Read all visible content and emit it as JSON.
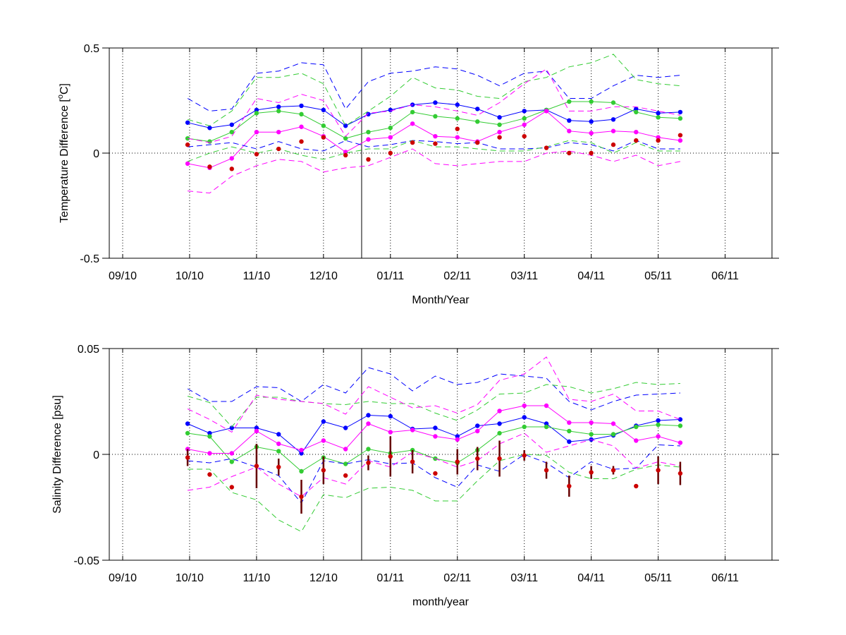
{
  "colors": {
    "blue": "#0000ff",
    "green": "#33cc33",
    "magenta": "#ff00ff",
    "red": "#cc0000",
    "errbar": "#660000",
    "axis": "#000000"
  },
  "chart_data": [
    {
      "type": "line",
      "ylabel_main": "Temperature Difference [",
      "ylabel_sup": "o",
      "ylabel_end": "C]",
      "xlabel": "Month/Year",
      "ylim": [
        -0.5,
        0.5
      ],
      "yticks": [
        -0.5,
        0,
        0.5
      ],
      "ytick_labels": [
        "-0.5",
        "0",
        "0.5"
      ],
      "xlim": [
        -0.2,
        9.7
      ],
      "xticks": [
        0,
        1,
        2,
        3,
        4,
        5,
        6,
        7,
        8,
        9
      ],
      "xtick_labels": [
        "09/10",
        "10/10",
        "11/10",
        "12/10",
        "01/11",
        "02/11",
        "03/11",
        "04/11",
        "05/11",
        "06/11"
      ],
      "grid": "dotted",
      "zero_line": true,
      "vline_x": 3.57,
      "x": [
        0.97,
        1.3,
        1.63,
        2.0,
        2.33,
        2.67,
        3.0,
        3.33,
        3.67,
        4.0,
        4.33,
        4.67,
        5.0,
        5.3,
        5.63,
        6.0,
        6.33,
        6.67,
        7.0,
        7.33,
        7.67,
        8.0,
        8.33
      ],
      "series": [
        {
          "color_key": "blue",
          "marker": true,
          "dashed": false,
          "values": [
            0.145,
            0.12,
            0.135,
            0.205,
            0.22,
            0.225,
            0.205,
            0.13,
            0.185,
            0.205,
            0.23,
            0.24,
            0.23,
            0.21,
            0.17,
            0.2,
            0.205,
            0.155,
            0.15,
            0.16,
            0.21,
            0.19,
            0.195
          ]
        },
        {
          "color_key": "green",
          "marker": true,
          "dashed": false,
          "values": [
            0.07,
            0.055,
            0.1,
            0.19,
            0.2,
            0.185,
            0.13,
            0.07,
            0.1,
            0.12,
            0.195,
            0.175,
            0.165,
            0.15,
            0.135,
            0.165,
            0.205,
            0.245,
            0.245,
            0.24,
            0.195,
            0.17,
            0.165
          ]
        },
        {
          "color_key": "magenta",
          "marker": true,
          "dashed": false,
          "values": [
            -0.05,
            -0.07,
            -0.025,
            0.1,
            0.1,
            0.125,
            0.08,
            0.005,
            0.065,
            0.075,
            0.14,
            0.08,
            0.075,
            0.055,
            0.1,
            0.135,
            0.2,
            0.105,
            0.095,
            0.105,
            0.1,
            0.075,
            0.06
          ]
        },
        {
          "color_key": "blue",
          "marker": false,
          "dashed": true,
          "values": [
            0.26,
            0.2,
            0.21,
            0.38,
            0.39,
            0.43,
            0.42,
            0.21,
            0.34,
            0.38,
            0.39,
            0.41,
            0.4,
            0.37,
            0.32,
            0.38,
            0.39,
            0.26,
            0.26,
            0.32,
            0.37,
            0.36,
            0.37
          ]
        },
        {
          "color_key": "blue",
          "marker": false,
          "dashed": true,
          "values": [
            0.03,
            0.04,
            0.05,
            0.02,
            0.055,
            0.02,
            0.01,
            0.06,
            0.03,
            0.04,
            0.06,
            0.055,
            0.045,
            0.05,
            0.02,
            0.02,
            0.025,
            0.05,
            0.04,
            0.01,
            0.06,
            0.02,
            0.02
          ]
        },
        {
          "color_key": "green",
          "marker": false,
          "dashed": true,
          "values": [
            0.16,
            0.13,
            0.2,
            0.36,
            0.36,
            0.38,
            0.33,
            0.13,
            0.2,
            0.27,
            0.36,
            0.31,
            0.3,
            0.27,
            0.26,
            0.34,
            0.36,
            0.41,
            0.43,
            0.47,
            0.35,
            0.33,
            0.32
          ]
        },
        {
          "color_key": "green",
          "marker": false,
          "dashed": true,
          "values": [
            -0.04,
            0.0,
            0.03,
            0.0,
            0.02,
            -0.01,
            -0.03,
            0.0,
            0.02,
            0.02,
            0.06,
            0.03,
            0.03,
            0.02,
            0.01,
            0.01,
            0.03,
            0.06,
            0.05,
            0.0,
            0.05,
            0.01,
            0.01
          ]
        },
        {
          "color_key": "magenta",
          "marker": false,
          "dashed": true,
          "values": [
            0.07,
            0.05,
            0.08,
            0.26,
            0.24,
            0.28,
            0.25,
            0.08,
            0.19,
            0.2,
            0.23,
            0.22,
            0.2,
            0.18,
            0.24,
            0.33,
            0.4,
            0.2,
            0.2,
            0.22,
            0.22,
            0.2,
            0.18
          ]
        },
        {
          "color_key": "magenta",
          "marker": false,
          "dashed": true,
          "values": [
            -0.18,
            -0.19,
            -0.11,
            -0.06,
            -0.03,
            -0.04,
            -0.09,
            -0.07,
            -0.06,
            -0.02,
            0.02,
            -0.05,
            -0.06,
            -0.05,
            -0.04,
            -0.04,
            0.0,
            0.01,
            -0.01,
            -0.04,
            -0.01,
            -0.06,
            -0.04
          ]
        }
      ],
      "red_points": {
        "color_key": "red",
        "x": [
          0.97,
          1.3,
          1.63,
          2.0,
          2.33,
          2.67,
          3.0,
          3.33,
          3.67,
          4.0,
          4.33,
          4.67,
          5.0,
          5.3,
          5.63,
          6.0,
          6.33,
          6.67,
          7.0,
          7.33,
          7.67,
          8.0,
          8.33
        ],
        "values": [
          0.04,
          -0.065,
          -0.075,
          -0.005,
          0.02,
          0.055,
          0.075,
          -0.01,
          -0.03,
          0.0,
          0.05,
          0.045,
          0.115,
          0.05,
          0.075,
          0.08,
          0.025,
          0.0,
          0.0,
          0.04,
          0.06,
          0.06,
          0.085
        ],
        "errors": []
      }
    },
    {
      "type": "line",
      "ylabel_main": "Salinity Difference [psu]",
      "ylabel_sup": "",
      "ylabel_end": "",
      "xlabel": "month/year",
      "ylim": [
        -0.05,
        0.05
      ],
      "yticks": [
        -0.05,
        0,
        0.05
      ],
      "ytick_labels": [
        "-0.05",
        "0",
        "0.05"
      ],
      "xlim": [
        -0.2,
        9.7
      ],
      "xticks": [
        0,
        1,
        2,
        3,
        4,
        5,
        6,
        7,
        8,
        9
      ],
      "xtick_labels": [
        "09/10",
        "10/10",
        "11/10",
        "12/10",
        "01/11",
        "02/11",
        "03/11",
        "04/11",
        "05/11",
        "06/11"
      ],
      "grid": "dotted",
      "zero_line": true,
      "vline_x": 3.57,
      "x": [
        0.97,
        1.3,
        1.63,
        2.0,
        2.33,
        2.67,
        3.0,
        3.33,
        3.67,
        4.0,
        4.33,
        4.67,
        5.0,
        5.3,
        5.63,
        6.0,
        6.33,
        6.67,
        7.0,
        7.33,
        7.67,
        8.0,
        8.33
      ],
      "series": [
        {
          "color_key": "blue",
          "marker": true,
          "dashed": false,
          "values": [
            0.0145,
            0.01,
            0.0125,
            0.0125,
            0.0095,
            0.0005,
            0.0155,
            0.0125,
            0.0185,
            0.018,
            0.012,
            0.0125,
            0.0085,
            0.0135,
            0.0145,
            0.0175,
            0.0145,
            0.006,
            0.007,
            0.009,
            0.0135,
            0.016,
            0.0165
          ]
        },
        {
          "color_key": "green",
          "marker": true,
          "dashed": false,
          "values": [
            0.01,
            0.0085,
            -0.0035,
            0.0035,
            0.0015,
            -0.008,
            -0.0015,
            -0.0045,
            0.0025,
            0.0005,
            0.002,
            -0.002,
            -0.004,
            0.002,
            0.01,
            0.013,
            0.013,
            0.011,
            0.0095,
            0.0095,
            0.013,
            0.014,
            0.0135
          ]
        },
        {
          "color_key": "magenta",
          "marker": true,
          "dashed": false,
          "values": [
            0.0025,
            0.0005,
            0.0005,
            0.011,
            0.005,
            0.002,
            0.0065,
            0.0025,
            0.0145,
            0.0105,
            0.0115,
            0.0085,
            0.007,
            0.011,
            0.0205,
            0.023,
            0.023,
            0.015,
            0.015,
            0.0145,
            0.0065,
            0.0085,
            0.0055
          ]
        },
        {
          "color_key": "blue",
          "marker": false,
          "dashed": true,
          "values": [
            0.031,
            0.025,
            0.025,
            0.032,
            0.0315,
            0.025,
            0.033,
            0.029,
            0.041,
            0.038,
            0.03,
            0.037,
            0.033,
            0.034,
            0.038,
            0.037,
            0.036,
            0.025,
            0.021,
            0.025,
            0.028,
            0.0285,
            0.029
          ]
        },
        {
          "color_key": "blue",
          "marker": false,
          "dashed": true,
          "values": [
            -0.003,
            -0.004,
            -0.002,
            -0.006,
            -0.01,
            -0.023,
            -0.003,
            -0.0045,
            -0.0025,
            -0.0045,
            -0.004,
            -0.011,
            -0.0155,
            -0.005,
            -0.008,
            0.0,
            -0.004,
            -0.011,
            -0.0035,
            -0.007,
            -0.0065,
            0.0045,
            0.004
          ]
        },
        {
          "color_key": "green",
          "marker": false,
          "dashed": true,
          "values": [
            0.0275,
            0.0245,
            0.013,
            0.027,
            0.027,
            0.025,
            0.024,
            0.0235,
            0.025,
            0.024,
            0.024,
            0.0195,
            0.016,
            0.021,
            0.0285,
            0.029,
            0.033,
            0.032,
            0.029,
            0.031,
            0.034,
            0.033,
            0.0335
          ]
        },
        {
          "color_key": "green",
          "marker": false,
          "dashed": true,
          "values": [
            -0.007,
            -0.007,
            -0.018,
            -0.0215,
            -0.031,
            -0.0365,
            -0.019,
            -0.0205,
            -0.016,
            -0.0155,
            -0.017,
            -0.022,
            -0.022,
            -0.0125,
            -0.003,
            0.0,
            -0.0005,
            -0.0085,
            -0.0115,
            -0.0115,
            -0.007,
            -0.005,
            -0.006
          ]
        },
        {
          "color_key": "magenta",
          "marker": false,
          "dashed": true,
          "values": [
            0.0215,
            0.0165,
            0.0105,
            0.028,
            0.026,
            0.025,
            0.024,
            0.019,
            0.032,
            0.027,
            0.022,
            0.023,
            0.0195,
            0.0235,
            0.035,
            0.038,
            0.046,
            0.026,
            0.025,
            0.0285,
            0.0205,
            0.0205,
            0.0165
          ]
        },
        {
          "color_key": "magenta",
          "marker": false,
          "dashed": true,
          "values": [
            -0.017,
            -0.0155,
            -0.0105,
            -0.006,
            -0.014,
            -0.02,
            -0.011,
            -0.014,
            -0.003,
            -0.006,
            0.001,
            -0.002,
            -0.006,
            -0.003,
            0.005,
            0.01,
            0.001,
            0.004,
            0.007,
            0.004,
            -0.0065,
            -0.0035,
            -0.0055
          ]
        }
      ],
      "red_points": {
        "color_key": "red",
        "x": [
          0.97,
          1.3,
          1.63,
          2.0,
          2.33,
          2.67,
          3.0,
          3.33,
          3.67,
          4.0,
          4.33,
          4.67,
          5.0,
          5.3,
          5.63,
          6.0,
          6.33,
          6.67,
          7.0,
          7.33,
          7.67,
          8.0,
          8.33
        ],
        "values": [
          -0.0015,
          -0.0095,
          -0.0155,
          -0.0055,
          -0.006,
          -0.02,
          -0.0075,
          -0.01,
          -0.004,
          -0.001,
          -0.0035,
          -0.009,
          -0.0035,
          -0.002,
          -0.002,
          -0.0005,
          -0.0075,
          -0.015,
          -0.0085,
          -0.0075,
          -0.015,
          -0.0075,
          -0.009
        ],
        "errors": [
          0.004,
          0.0,
          0.0,
          0.0105,
          0.004,
          0.008,
          0.0065,
          0.0,
          0.0035,
          0.0095,
          0.0055,
          0.0,
          0.006,
          0.0055,
          0.0085,
          0.0025,
          0.004,
          0.005,
          0.003,
          0.002,
          0.0,
          0.0065,
          0.0055
        ]
      }
    }
  ]
}
